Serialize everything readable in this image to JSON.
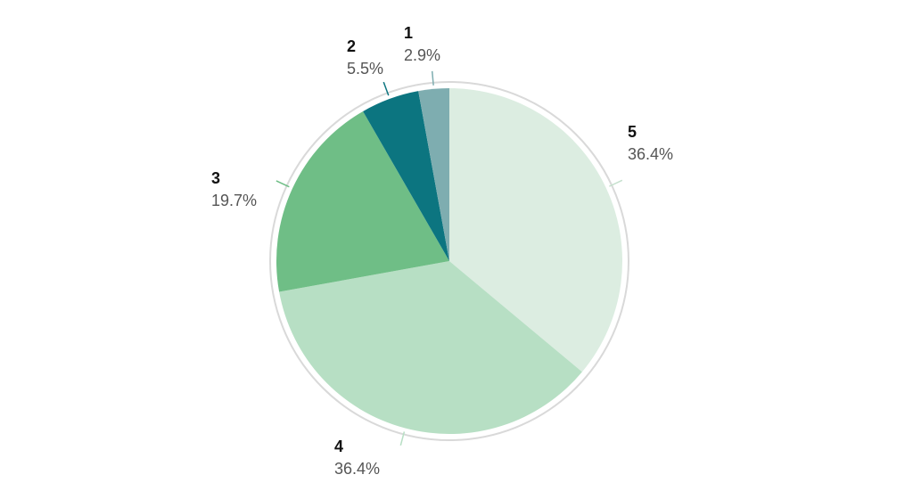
{
  "chart_data": {
    "type": "pie",
    "slices": [
      {
        "label": "5",
        "value": 36.4,
        "display": "36.4%",
        "color": "#dcede1"
      },
      {
        "label": "4",
        "value": 36.4,
        "display": "36.4%",
        "color": "#b7dfc4"
      },
      {
        "label": "3",
        "value": 19.7,
        "display": "19.7%",
        "color": "#6fbe86"
      },
      {
        "label": "2",
        "value": 5.5,
        "display": "5.5%",
        "color": "#0c7580"
      },
      {
        "label": "1",
        "value": 2.9,
        "display": "2.9%",
        "color": "#7eadb0"
      }
    ],
    "start": "12 o'clock",
    "direction": "clockwise",
    "legend": "none"
  }
}
